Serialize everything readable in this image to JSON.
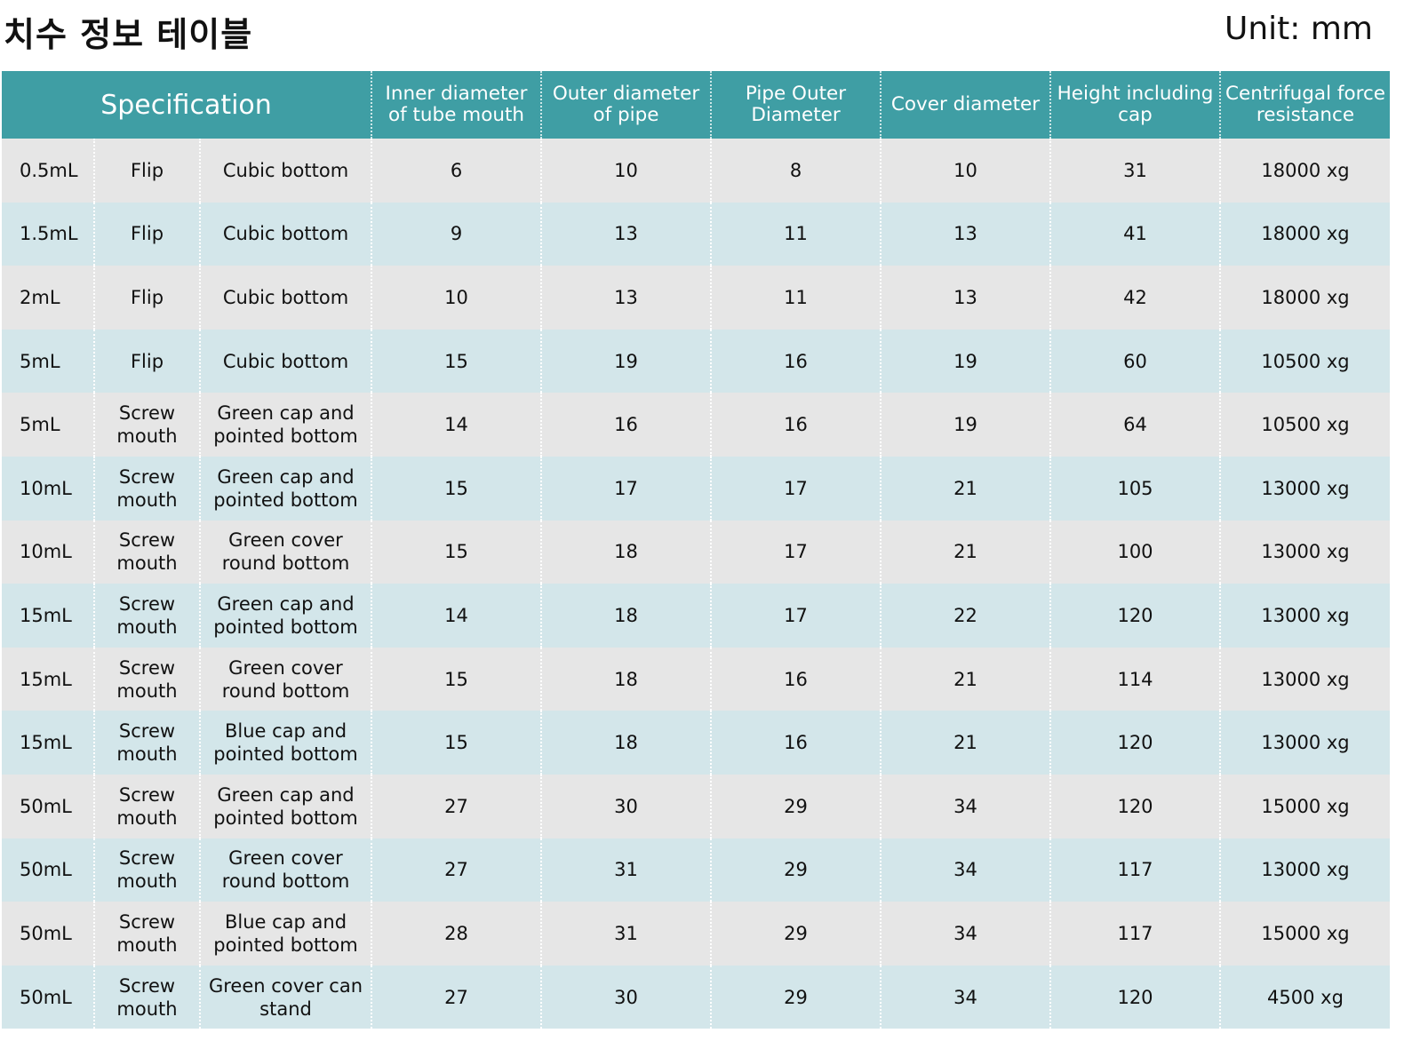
{
  "title": "치수 정보 테이블",
  "unit": "Unit: mm",
  "table": {
    "spec_header": "Specification",
    "headers": [
      "Inner diameter of tube mouth",
      "Outer diameter of pipe",
      "Pipe Outer Diameter",
      "Cover diameter",
      "Height including cap",
      "Centrifugal force resistance"
    ],
    "rows": [
      {
        "volume": "0.5mL",
        "type": "Flip",
        "desc": "Cubic bottom",
        "inner": "6",
        "outer": "10",
        "pipe": "8",
        "cover": "10",
        "height": "31",
        "force": "18000 xg"
      },
      {
        "volume": "1.5mL",
        "type": "Flip",
        "desc": "Cubic bottom",
        "inner": "9",
        "outer": "13",
        "pipe": "11",
        "cover": "13",
        "height": "41",
        "force": "18000 xg"
      },
      {
        "volume": "2mL",
        "type": "Flip",
        "desc": "Cubic bottom",
        "inner": "10",
        "outer": "13",
        "pipe": "11",
        "cover": "13",
        "height": "42",
        "force": "18000 xg"
      },
      {
        "volume": "5mL",
        "type": "Flip",
        "desc": "Cubic bottom",
        "inner": "15",
        "outer": "19",
        "pipe": "16",
        "cover": "19",
        "height": "60",
        "force": "10500 xg"
      },
      {
        "volume": "5mL",
        "type": "Screw mouth",
        "desc": "Green cap and pointed bottom",
        "inner": "14",
        "outer": "16",
        "pipe": "16",
        "cover": "19",
        "height": "64",
        "force": "10500 xg"
      },
      {
        "volume": "10mL",
        "type": "Screw mouth",
        "desc": "Green cap and pointed bottom",
        "inner": "15",
        "outer": "17",
        "pipe": "17",
        "cover": "21",
        "height": "105",
        "force": "13000 xg"
      },
      {
        "volume": "10mL",
        "type": "Screw mouth",
        "desc": "Green cover round bottom",
        "inner": "15",
        "outer": "18",
        "pipe": "17",
        "cover": "21",
        "height": "100",
        "force": "13000 xg"
      },
      {
        "volume": "15mL",
        "type": "Screw mouth",
        "desc": "Green cap and pointed bottom",
        "inner": "14",
        "outer": "18",
        "pipe": "17",
        "cover": "22",
        "height": "120",
        "force": "13000 xg"
      },
      {
        "volume": "15mL",
        "type": "Screw mouth",
        "desc": "Green cover round bottom",
        "inner": "15",
        "outer": "18",
        "pipe": "16",
        "cover": "21",
        "height": "114",
        "force": "13000 xg"
      },
      {
        "volume": "15mL",
        "type": "Screw mouth",
        "desc": "Blue cap and pointed bottom",
        "inner": "15",
        "outer": "18",
        "pipe": "16",
        "cover": "21",
        "height": "120",
        "force": "13000 xg"
      },
      {
        "volume": "50mL",
        "type": "Screw mouth",
        "desc": "Green cap and pointed bottom",
        "inner": "27",
        "outer": "30",
        "pipe": "29",
        "cover": "34",
        "height": "120",
        "force": "15000 xg"
      },
      {
        "volume": "50mL",
        "type": "Screw mouth",
        "desc": "Green cover round bottom",
        "inner": "27",
        "outer": "31",
        "pipe": "29",
        "cover": "34",
        "height": "117",
        "force": "13000 xg"
      },
      {
        "volume": "50mL",
        "type": "Screw mouth",
        "desc": "Blue cap and pointed bottom",
        "inner": "28",
        "outer": "31",
        "pipe": "29",
        "cover": "34",
        "height": "117",
        "force": "15000 xg"
      },
      {
        "volume": "50mL",
        "type": "Screw mouth",
        "desc": "Green cover can stand",
        "inner": "27",
        "outer": "30",
        "pipe": "29",
        "cover": "34",
        "height": "120",
        "force": "4500 xg"
      }
    ]
  }
}
